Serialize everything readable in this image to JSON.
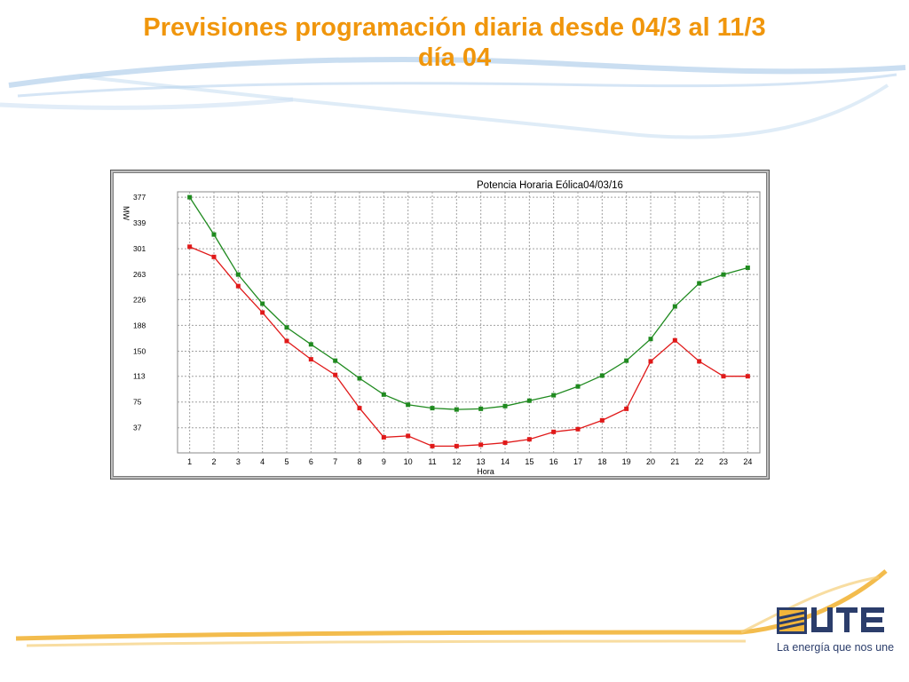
{
  "slide": {
    "title_line1": "Previsiones programación diaria desde 04/3 al 11/3",
    "title_line2": "día 04"
  },
  "brand": {
    "logo_text": "UTE",
    "tagline": "La energía que nos une",
    "title_color": "#f0960c",
    "logo_color": "#2b3d6b",
    "swoosh_colors": [
      "#f2b53a",
      "#9ec3e6"
    ]
  },
  "chart_data": {
    "type": "line",
    "title": "Potencia Horaria Eólica04/03/16",
    "xlabel": "Hora",
    "ylabel": "MW",
    "x": [
      1,
      2,
      3,
      4,
      5,
      6,
      7,
      8,
      9,
      10,
      11,
      12,
      13,
      14,
      15,
      16,
      17,
      18,
      19,
      20,
      21,
      22,
      23,
      24
    ],
    "y_ticks": [
      37,
      75,
      113,
      150,
      188,
      226,
      263,
      301,
      339,
      377
    ],
    "ylim": [
      0,
      385
    ],
    "grid": true,
    "series": [
      {
        "color": "#1f8a1f",
        "values": [
          377,
          322,
          263,
          220,
          185,
          160,
          136,
          110,
          86,
          71,
          66,
          64,
          65,
          69,
          77,
          85,
          98,
          114,
          136,
          168,
          216,
          250,
          263,
          273
        ]
      },
      {
        "color": "#e01919",
        "values": [
          304,
          289,
          246,
          207,
          165,
          138,
          115,
          66,
          23,
          25,
          10,
          10,
          12,
          15,
          20,
          31,
          35,
          48,
          65,
          135,
          166,
          135,
          113,
          113
        ]
      }
    ]
  }
}
